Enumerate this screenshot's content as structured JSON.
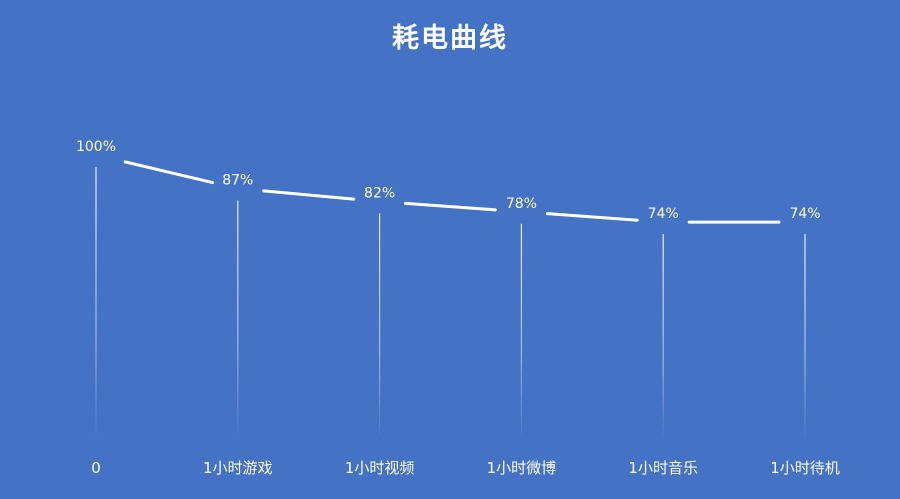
{
  "chart_data": {
    "type": "line",
    "title": "耗电曲线",
    "categories": [
      "0",
      "1小时游戏",
      "1小时视频",
      "1小时微博",
      "1小时音乐",
      "1小时待机"
    ],
    "values": [
      100,
      87,
      82,
      78,
      74,
      74
    ],
    "data_labels": [
      "100%",
      "87%",
      "82%",
      "78%",
      "74%",
      "74%"
    ],
    "xlabel": "",
    "ylabel": "",
    "grid": false,
    "drop_lines": true,
    "legend": "none",
    "colors": {
      "background": "#4472C4",
      "line": "#FFFFFF",
      "text": "#FFFFFF"
    }
  }
}
